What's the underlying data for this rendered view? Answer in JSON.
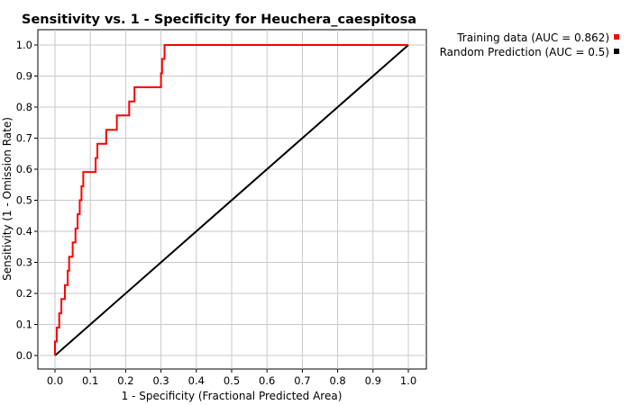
{
  "chart_data": {
    "type": "line",
    "title": "Sensitivity vs. 1 - Specificity for Heuchera_caespitosa",
    "xlabel": "1 - Specificity  (Fractional Predicted Area)",
    "ylabel": "Sensitivity  (1 - Omission Rate)",
    "xlim": [
      0,
      1
    ],
    "ylim": [
      0,
      1
    ],
    "x_ticks": [
      "0.0",
      "0.1",
      "0.2",
      "0.3",
      "0.4",
      "0.5",
      "0.6",
      "0.7",
      "0.8",
      "0.9",
      "1.0"
    ],
    "y_ticks": [
      "0.0",
      "0.1",
      "0.2",
      "0.3",
      "0.4",
      "0.5",
      "0.6",
      "0.7",
      "0.8",
      "0.9",
      "1.0"
    ],
    "grid": true,
    "legend_position": "top-right",
    "series": [
      {
        "name": "Training data (AUC = 0.862)",
        "color": "#ff0000",
        "x": [
          0.0,
          0.0,
          0.005,
          0.005,
          0.012,
          0.012,
          0.018,
          0.018,
          0.028,
          0.028,
          0.036,
          0.036,
          0.04,
          0.04,
          0.05,
          0.05,
          0.058,
          0.058,
          0.064,
          0.064,
          0.07,
          0.07,
          0.075,
          0.075,
          0.08,
          0.08,
          0.115,
          0.115,
          0.12,
          0.12,
          0.145,
          0.145,
          0.175,
          0.175,
          0.21,
          0.21,
          0.225,
          0.225,
          0.3,
          0.3,
          0.303,
          0.303,
          0.31,
          0.31,
          0.318,
          0.318,
          0.37,
          0.37,
          0.435,
          0.435,
          1.0
        ],
        "y": [
          0.0,
          0.045,
          0.045,
          0.09,
          0.09,
          0.136,
          0.136,
          0.182,
          0.182,
          0.227,
          0.227,
          0.273,
          0.273,
          0.318,
          0.318,
          0.364,
          0.364,
          0.409,
          0.409,
          0.455,
          0.455,
          0.5,
          0.5,
          0.545,
          0.545,
          0.591,
          0.591,
          0.636,
          0.636,
          0.682,
          0.682,
          0.727,
          0.727,
          0.773,
          0.773,
          0.818,
          0.818,
          0.864,
          0.864,
          0.909,
          0.909,
          0.955,
          0.955,
          1.0,
          1.0,
          1.0,
          1.0,
          1.0,
          1.0,
          1.0,
          1.0
        ]
      },
      {
        "name": "Random Prediction (AUC = 0.5)",
        "color": "#000000",
        "x": [
          0.0,
          1.0
        ],
        "y": [
          0.0,
          1.0
        ]
      }
    ]
  }
}
